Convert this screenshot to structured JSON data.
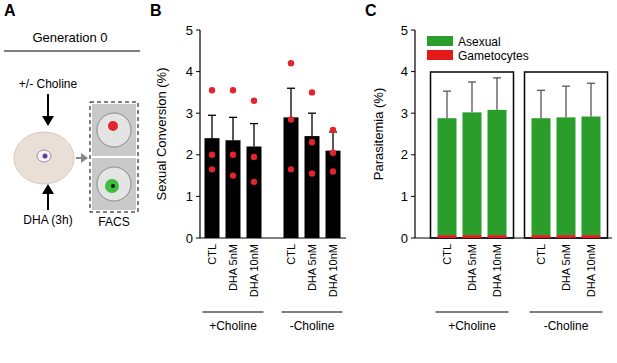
{
  "diagram": {
    "title": "A",
    "header": "Generation 0",
    "top_label": "+/- Choline",
    "bottom_label": "DHA (3h)",
    "box_label": "FACS"
  },
  "chart_data": [
    {
      "title": "B",
      "type": "bar",
      "y_label": "Sexual Conversion (%)",
      "categories": [
        "CTL",
        "DHA 5nM",
        "DHA 10nM",
        "CTL",
        "DHA 5nM",
        "DHA 10nM"
      ],
      "groups": [
        "+Choline",
        "-Choline"
      ],
      "ylim": [
        0,
        5
      ],
      "yticks": [
        0,
        1,
        2,
        3,
        4,
        5
      ],
      "series": [
        {
          "type": "bar",
          "color": "#000000",
          "values": [
            2.4,
            2.35,
            2.2,
            2.9,
            2.45,
            2.1
          ],
          "errors": [
            0.55,
            0.55,
            0.55,
            0.7,
            0.55,
            0.45
          ]
        },
        {
          "type": "scatter",
          "color": "#e3242b",
          "values": [
            [
              3.55,
              2.0,
              1.65
            ],
            [
              3.55,
              2.0,
              1.5
            ],
            [
              3.3,
              1.95,
              1.35
            ],
            [
              4.2,
              2.85,
              1.65
            ],
            [
              3.5,
              2.3,
              1.55
            ],
            [
              2.6,
              2.05,
              1.6
            ]
          ]
        }
      ]
    },
    {
      "title": "C",
      "type": "bar",
      "stacked": true,
      "legend": "top-left",
      "y_label": "Parasitemia (%)",
      "categories": [
        "CTL",
        "DHA 5nM",
        "DHA 10nM",
        "CTL",
        "DHA 5nM",
        "DHA 10nM"
      ],
      "groups": [
        "+Choline",
        "-Choline"
      ],
      "ylim": [
        0,
        5
      ],
      "yticks": [
        0,
        1,
        2,
        3,
        4,
        5
      ],
      "series": [
        {
          "name": "Asexual",
          "color": "#2a9d2a",
          "values": [
            2.81,
            2.95,
            3.01,
            2.81,
            2.83,
            2.85
          ],
          "errors": [
            0.65,
            0.73,
            0.77,
            0.67,
            0.75,
            0.8
          ]
        },
        {
          "name": "Gametocytes",
          "color": "#e31a1c",
          "values": [
            0.07,
            0.07,
            0.07,
            0.07,
            0.07,
            0.07
          ]
        }
      ]
    }
  ]
}
